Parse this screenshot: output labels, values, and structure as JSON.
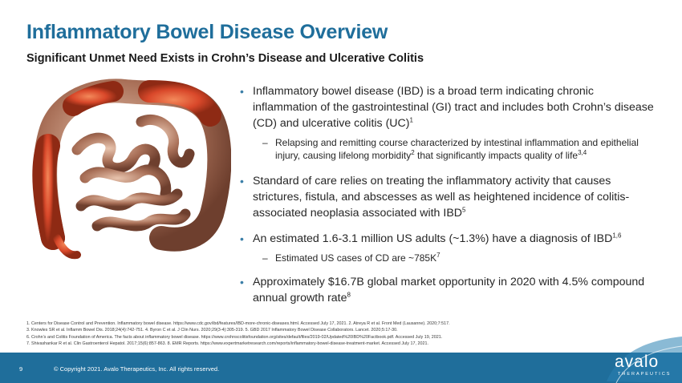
{
  "header": {
    "title": "Inflammatory Bowel Disease Overview",
    "subtitle": "Significant Unmet Need Exists in Crohn’s Disease and Ulcerative Colitis"
  },
  "bullets": {
    "b1_text": "Inflammatory bowel disease (IBD) is a broad term indicating chronic inflammation of the gastrointestinal (GI) tract and includes both Crohn’s disease (CD) and ulcerative colitis (UC)",
    "b1_sup": "1",
    "b1_sub_a": "Relapsing and remitting course characterized by intestinal inflammation and epithelial injury, causing lifelong morbidity",
    "b1_sub_sup1": "2",
    "b1_sub_b": " that significantly impacts quality of life",
    "b1_sub_sup2": "3,4",
    "b2_text": "Standard of care relies on treating the inflammatory activity that causes strictures, fistula, and abscesses as well as heightened incidence of colitis-associated neoplasia associated with IBD",
    "b2_sup": "5",
    "b3_text": "An estimated 1.6-3.1 million US adults (~1.3%) have a diagnosis of IBD",
    "b3_sup": "1,6",
    "b3_sub": "Estimated US cases of CD are ~785K",
    "b3_sub_sup": "7",
    "b4_text": "Approximately $16.7B global market opportunity in 2020 with 4.5% compound annual growth rate",
    "b4_sup": "8",
    "dot": "•",
    "dash": "–"
  },
  "footnotes": {
    "line1": "1. Centers for Disease Control and Prevention. Inflammatory bowel disease. https://www.cdc.gov/ibd/features/IBD-more-chronic-diseases.html. Accessed July 17, 2021. 2. Atreya R et al. Front Med (Lausanne). 2020;7:517.",
    "line2": "3. Knowles SR et al. Inflamm Bowel Dis. 2018;24(4):742-751. 4. Byron C et al. J Clin Nurs. 2020;29(3-4):305-319. 5. GBD 2017 Inflammatory Bowel Disease Collaborators. Lancet. 2020;5:17-30.",
    "line3": "6. Crohn’s and Colitis Foundation of America. The facts about inflammatory bowel disease. https://www.crohnscolitisfoundation.org/sites/default/files/2019-02/Updated%20IBD%20Factbook.pdf. Accessed July 19, 2021.",
    "line4": "7. Shivashankar R et al. Clin Gastroenterol Hepatol. 2017;15(6):857-863. 8. EMR Reports. https://www.expertmarketresearch.com/reports/inflammatory-bowel-disease-treatment-market. Accessed July 17, 2021."
  },
  "footer": {
    "page_number": "9",
    "copyright": "© Copyright 2021. Avalo Therapeutics, Inc. All rights reserved.",
    "logo_word": "avalo",
    "logo_sub": "THERAPEUTICS"
  },
  "colors": {
    "brand_blue": "#1f6e9b",
    "inflamed": "#d9532a",
    "intestine": "#b07c62"
  }
}
